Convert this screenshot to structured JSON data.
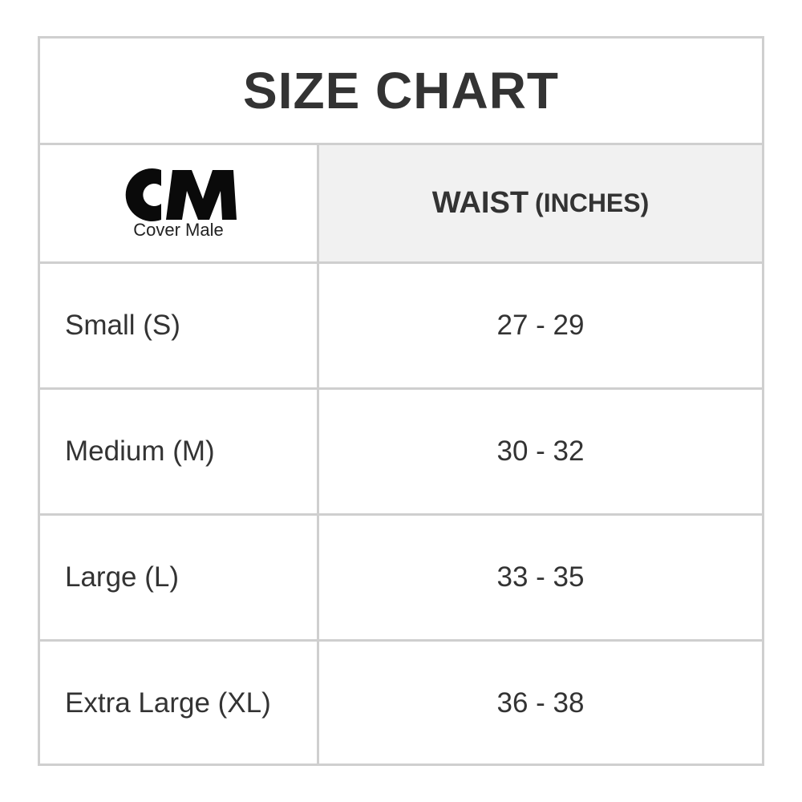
{
  "title": "SIZE CHART",
  "logo": {
    "mark": "CM",
    "text": "Cover Male"
  },
  "header": {
    "measure": "WAIST",
    "unit": "(INCHES)"
  },
  "rows": [
    {
      "size": "Small (S)",
      "waist": "27 - 29"
    },
    {
      "size": "Medium (M)",
      "waist": "30 - 32"
    },
    {
      "size": "Large (L)",
      "waist": "33 - 35"
    },
    {
      "size": "Extra Large (XL)",
      "waist": "36 - 38"
    }
  ],
  "colors": {
    "border": "#cfcfcf",
    "header_bg": "#f1f1f1",
    "text": "#333333"
  }
}
